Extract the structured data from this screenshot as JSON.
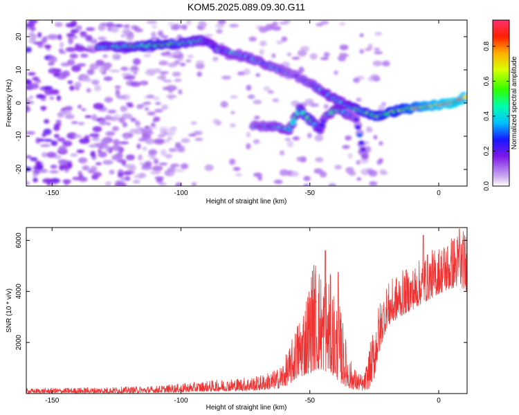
{
  "title": "KOM5.2025.089.09.30.G11",
  "chart_data": [
    {
      "type": "heatmap",
      "xlabel": "Height of straight line (km)",
      "ylabel": "Frequency (Hz)",
      "xlim": [
        -160,
        11
      ],
      "ylim": [
        -25,
        25
      ],
      "xticks": [
        -150,
        -100,
        -50,
        0
      ],
      "xtick_labels": [
        "-150",
        "-100",
        "-50",
        "0"
      ],
      "yticks": [
        20,
        10,
        0,
        -10,
        -20
      ],
      "ytick_labels": [
        "20",
        "10",
        "0",
        "-10",
        "-20"
      ],
      "colorbar": {
        "label": "Normalized spectral amplitude",
        "range": [
          0,
          0.95
        ],
        "ticks": [
          0.0,
          0.2,
          0.4,
          0.6,
          0.8
        ],
        "tick_labels": [
          "0.0",
          "0.2",
          "0.4",
          "0.6",
          "0.8"
        ]
      },
      "ridges": [
        {
          "points": [
            [
              -132,
              17
            ],
            [
              -120,
              17
            ],
            [
              -108,
              17.5
            ],
            [
              -100,
              18
            ],
            [
              -92,
              19
            ],
            [
              -85,
              16
            ],
            [
              -75,
              14
            ],
            [
              -65,
              11
            ],
            [
              -55,
              8
            ],
            [
              -48,
              5
            ],
            [
              -42,
              2
            ],
            [
              -35,
              -1
            ],
            [
              -28,
              -3
            ],
            [
              -24,
              -4
            ],
            [
              -15,
              -2
            ],
            [
              -5,
              -1
            ],
            [
              5,
              0
            ],
            [
              11,
              2
            ]
          ],
          "amp": [
            0.4,
            0.45,
            0.5,
            0.45,
            0.4,
            0.35,
            0.32,
            0.3,
            0.25,
            0.3,
            0.35,
            0.4,
            0.5,
            0.55,
            0.6,
            0.75,
            0.85,
            0.8
          ]
        },
        {
          "points": [
            [
              -72,
              -7
            ],
            [
              -65,
              -7
            ],
            [
              -58,
              -8
            ],
            [
              -54,
              -2
            ],
            [
              -50,
              -5
            ],
            [
              -46,
              -8
            ],
            [
              -44,
              -4
            ],
            [
              -40,
              -2
            ],
            [
              -36,
              -3
            ],
            [
              -32,
              -5
            ],
            [
              -30,
              -12
            ],
            [
              -28,
              -18
            ]
          ],
          "amp": [
            0.25,
            0.3,
            0.35,
            0.4,
            0.45,
            0.35,
            0.3,
            0.4,
            0.35,
            0.25,
            0.2,
            0.25
          ]
        }
      ],
      "noise_region": {
        "x": [
          -160,
          -100
        ],
        "y": [
          -25,
          25
        ],
        "amp": 0.15
      }
    },
    {
      "type": "line",
      "xlabel": "Height of straight line (km)",
      "ylabel": "SNR (10 * v/v)",
      "xlim": [
        -160,
        11
      ],
      "ylim": [
        0,
        6500
      ],
      "xticks": [
        -150,
        -100,
        -50,
        0
      ],
      "xtick_labels": [
        "-150",
        "-100",
        "-50",
        "0"
      ],
      "yticks": [
        2000,
        4000,
        6000
      ],
      "ytick_labels": [
        "2000",
        "4000",
        "6000"
      ],
      "color": "#ee3333",
      "envelope": {
        "x": [
          -160,
          -130,
          -110,
          -100,
          -90,
          -80,
          -70,
          -62,
          -58,
          -55,
          -52,
          -50,
          -48,
          -45,
          -42,
          -40,
          -38,
          -35,
          -32,
          -29,
          -27,
          -25,
          -24,
          -22,
          -20,
          -15,
          -10,
          -5,
          0,
          5,
          8,
          11
        ],
        "low": [
          20,
          20,
          30,
          50,
          80,
          100,
          120,
          200,
          350,
          600,
          700,
          800,
          900,
          900,
          800,
          600,
          400,
          200,
          150,
          100,
          200,
          600,
          1200,
          2000,
          2600,
          3000,
          3300,
          3600,
          3900,
          4100,
          4200,
          4000
        ],
        "high": [
          200,
          250,
          300,
          400,
          500,
          600,
          700,
          1000,
          1800,
          2800,
          3800,
          4600,
          5500,
          4800,
          4700,
          3800,
          3400,
          1500,
          900,
          700,
          1800,
          2700,
          3300,
          3900,
          4300,
          4800,
          5000,
          5500,
          5800,
          6200,
          6400,
          6450
        ]
      },
      "peaks": [
        [
          -49,
          4800
        ],
        [
          -44,
          5600
        ],
        [
          -39,
          4750
        ],
        [
          -6,
          6200
        ],
        [
          8,
          6450
        ]
      ]
    }
  ]
}
